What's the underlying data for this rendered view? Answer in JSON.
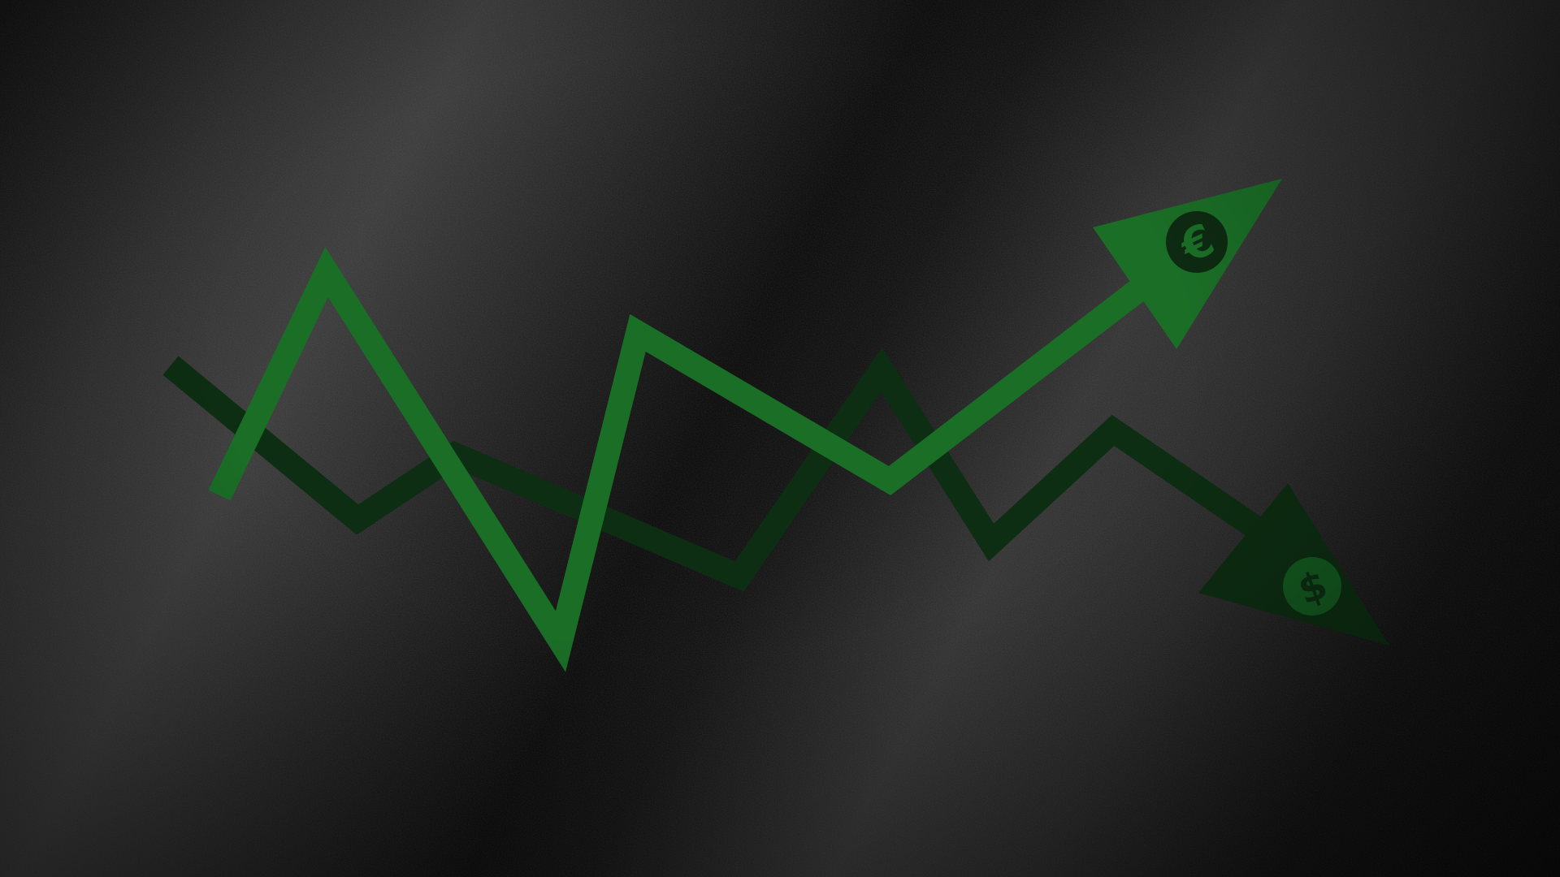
{
  "illustration": {
    "up_arrow": {
      "color": "#1a6e26",
      "badge_symbol": "€",
      "badge_color": "#0e2a12",
      "icon": "euro-icon"
    },
    "down_arrow": {
      "color": "#0d2e12",
      "badge_symbol": "$",
      "badge_color": "#145a20",
      "icon": "dollar-icon"
    },
    "background": {
      "texture": "dark-stone",
      "base_color": "#050505"
    }
  }
}
